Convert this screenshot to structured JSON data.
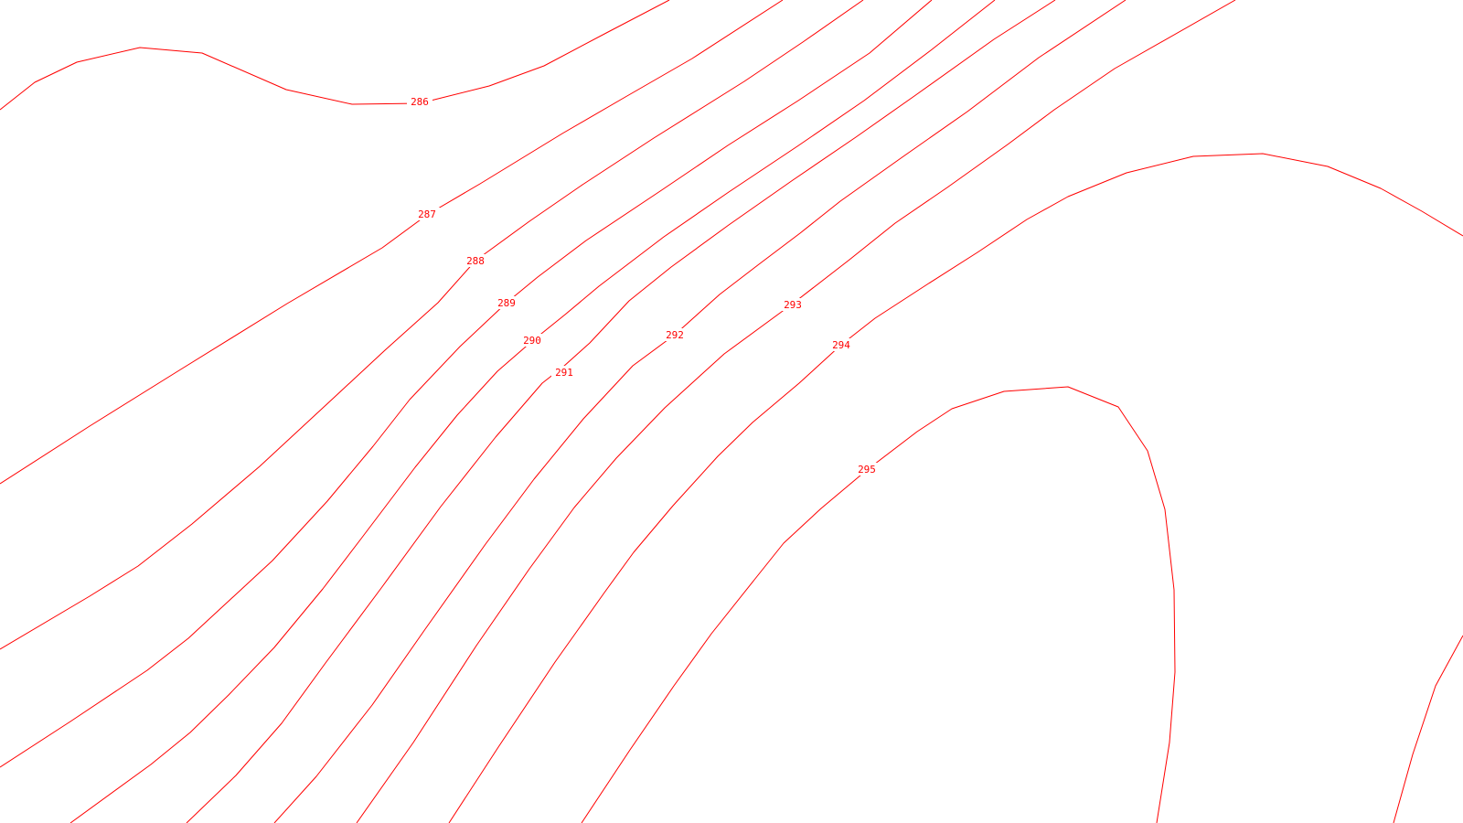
{
  "map": {
    "background": "#ffffff",
    "line_color": "#ff0000",
    "contours": [
      {
        "value": "286"
      },
      {
        "value": "287"
      },
      {
        "value": "288"
      },
      {
        "value": "289"
      },
      {
        "value": "290"
      },
      {
        "value": "291"
      },
      {
        "value": "292"
      },
      {
        "value": "293"
      },
      {
        "value": "294"
      },
      {
        "value": "295"
      },
      {
        "value": ""
      }
    ]
  }
}
